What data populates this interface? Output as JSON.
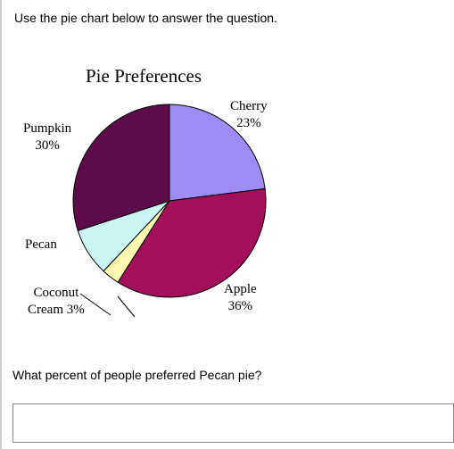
{
  "instruction_text": "Use the pie chart below to answer the question.",
  "question_text": "What percent of people preferred Pecan pie?",
  "chart": {
    "type": "pie",
    "title": "Pie Preferences",
    "title_fontsize": 21,
    "title_fontfamily": "Times New Roman",
    "radius": 108,
    "background_color": "#ffffff",
    "stroke_color": "#000000",
    "stroke_width": 1,
    "label_fontfamily": "Times New Roman",
    "label_fontsize": 15,
    "slices": [
      {
        "name": "Cherry",
        "value": 23,
        "color": "#9f8cf2",
        "label": "Cherry\n23%"
      },
      {
        "name": "Apple",
        "value": 36,
        "color": "#a30f5a",
        "label": "Apple\n36%"
      },
      {
        "name": "Coconut Cream",
        "value": 3,
        "color": "#fdf9b0",
        "label": "Coconut\nCream 3%"
      },
      {
        "name": "Pecan",
        "value": 8,
        "color": "#c9f5f5",
        "label": "Pecan"
      },
      {
        "name": "Pumpkin",
        "value": 30,
        "color": "#5d0a48",
        "label": "Pumpkin\n30%"
      }
    ]
  },
  "answer_value": ""
}
